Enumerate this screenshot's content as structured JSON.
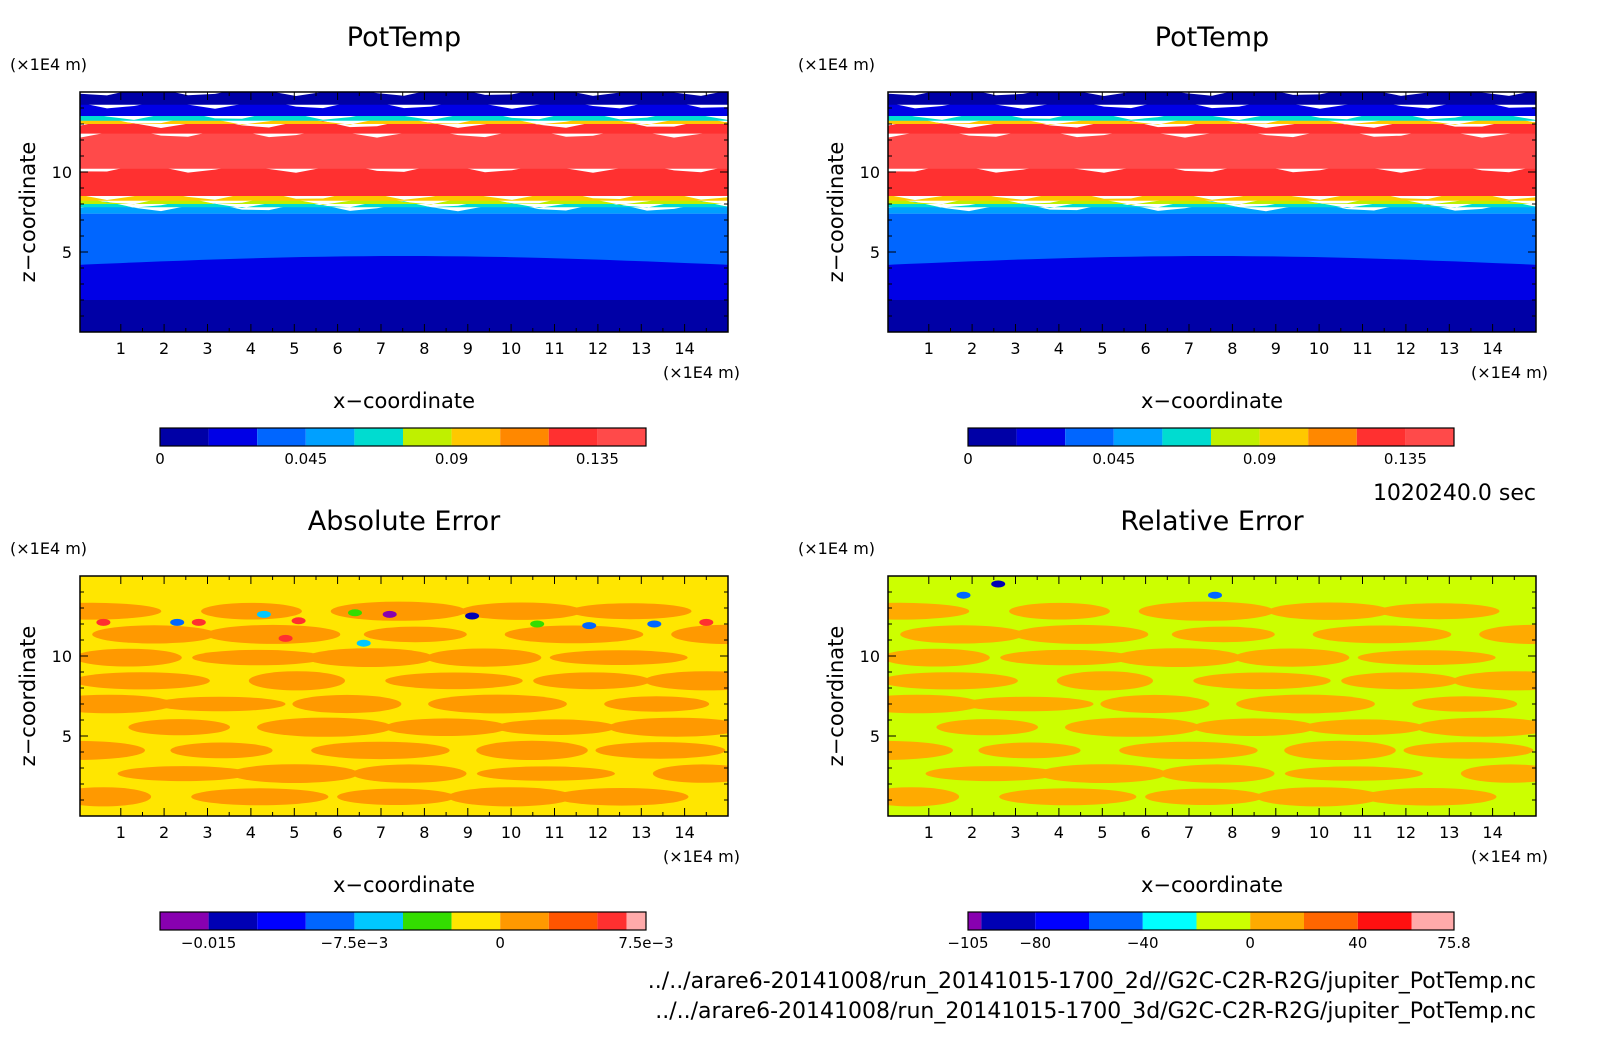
{
  "time_label": "1020240.0 sec",
  "files": [
    "../../arare6-20141008/run_20141015-1700_2d//G2C-C2R-R2G/jupiter_PotTemp.nc",
    "../../arare6-20141008/run_20141015-1700_3d/G2C-C2R-R2G/jupiter_PotTemp.nc"
  ],
  "chart_data": [
    {
      "type": "heatmap",
      "title": "PotTemp",
      "xlabel": "x−coordinate",
      "ylabel": "z−coordinate",
      "x_unit": "(×1E4 m)",
      "y_unit": "(×1E4 m)",
      "xlim": [
        0.06,
        15
      ],
      "ylim": [
        0,
        15
      ],
      "x_ticks": [
        1,
        2,
        3,
        4,
        5,
        6,
        7,
        8,
        9,
        10,
        11,
        12,
        13,
        14
      ],
      "y_ticks": [
        5,
        10
      ],
      "colorbar": {
        "min": 0,
        "max": 0.15,
        "levels": [
          0,
          0.015,
          0.03,
          0.045,
          0.06,
          0.075,
          0.09,
          0.105,
          0.12,
          0.135,
          0.15
        ],
        "colors": [
          "#0000a6",
          "#0000e6",
          "#0066ff",
          "#00a0ff",
          "#00dcd0",
          "#bff000",
          "#ffc800",
          "#ff8800",
          "#ff3030",
          "#ff4a4a",
          "#ffaaaa"
        ],
        "tick_values": [
          0,
          0.045,
          0.09,
          0.135
        ],
        "tick_labels": [
          "0",
          "0.045",
          "0.09",
          "0.135"
        ]
      },
      "bands": [
        {
          "z": [
            0,
            2
          ],
          "value": 0.005
        },
        {
          "z": [
            2,
            4.2
          ],
          "value": 0.02
        },
        {
          "z": [
            4.2,
            7.4
          ],
          "value": 0.035
        },
        {
          "z": [
            7.4,
            7.8
          ],
          "value": 0.05
        },
        {
          "z": [
            7.8,
            8.0
          ],
          "value": 0.065
        },
        {
          "z": [
            8.0,
            8.2
          ],
          "value": 0.08
        },
        {
          "z": [
            8.2,
            8.5
          ],
          "value": 0.095
        },
        {
          "z": [
            8.5,
            10.2
          ],
          "value": 0.125
        },
        {
          "z": [
            10.2,
            12.4
          ],
          "value": 0.145
        },
        {
          "z": [
            12.4,
            13.0
          ],
          "value": 0.128
        },
        {
          "z": [
            13.0,
            13.2
          ],
          "value": 0.095
        },
        {
          "z": [
            13.2,
            13.5
          ],
          "value": 0.065
        },
        {
          "z": [
            13.5,
            14.2
          ],
          "value": 0.02
        },
        {
          "z": [
            14.2,
            15
          ],
          "value": -0.005
        }
      ]
    },
    {
      "type": "heatmap",
      "title": "PotTemp",
      "xlabel": "x−coordinate",
      "ylabel": "z−coordinate",
      "x_unit": "(×1E4 m)",
      "y_unit": "(×1E4 m)",
      "xlim": [
        0.06,
        15
      ],
      "ylim": [
        0,
        15
      ],
      "x_ticks": [
        1,
        2,
        3,
        4,
        5,
        6,
        7,
        8,
        9,
        10,
        11,
        12,
        13,
        14
      ],
      "y_ticks": [
        5,
        10
      ],
      "colorbar": {
        "min": 0,
        "max": 0.15,
        "levels": [
          0,
          0.015,
          0.03,
          0.045,
          0.06,
          0.075,
          0.09,
          0.105,
          0.12,
          0.135,
          0.15
        ],
        "colors": [
          "#0000a6",
          "#0000e6",
          "#0066ff",
          "#00a0ff",
          "#00dcd0",
          "#bff000",
          "#ffc800",
          "#ff8800",
          "#ff3030",
          "#ff4a4a",
          "#ffaaaa"
        ],
        "tick_values": [
          0,
          0.045,
          0.09,
          0.135
        ],
        "tick_labels": [
          "0",
          "0.045",
          "0.09",
          "0.135"
        ]
      },
      "bands": [
        {
          "z": [
            0,
            2
          ],
          "value": 0.005
        },
        {
          "z": [
            2,
            4.2
          ],
          "value": 0.02
        },
        {
          "z": [
            4.2,
            7.4
          ],
          "value": 0.035
        },
        {
          "z": [
            7.4,
            7.8
          ],
          "value": 0.05
        },
        {
          "z": [
            7.8,
            8.0
          ],
          "value": 0.065
        },
        {
          "z": [
            8.0,
            8.2
          ],
          "value": 0.08
        },
        {
          "z": [
            8.2,
            8.5
          ],
          "value": 0.095
        },
        {
          "z": [
            8.5,
            10.2
          ],
          "value": 0.125
        },
        {
          "z": [
            10.2,
            12.4
          ],
          "value": 0.145
        },
        {
          "z": [
            12.4,
            13.0
          ],
          "value": 0.128
        },
        {
          "z": [
            13.0,
            13.2
          ],
          "value": 0.095
        },
        {
          "z": [
            13.2,
            13.5
          ],
          "value": 0.065
        },
        {
          "z": [
            13.5,
            14.2
          ],
          "value": 0.02
        },
        {
          "z": [
            14.2,
            15
          ],
          "value": -0.005
        }
      ]
    },
    {
      "type": "heatmap",
      "title": "Absolute Error",
      "xlabel": "x−coordinate",
      "ylabel": "z−coordinate",
      "x_unit": "(×1E4 m)",
      "y_unit": "(×1E4 m)",
      "xlim": [
        0.06,
        15
      ],
      "ylim": [
        0,
        15
      ],
      "x_ticks": [
        1,
        2,
        3,
        4,
        5,
        6,
        7,
        8,
        9,
        10,
        11,
        12,
        13,
        14
      ],
      "y_ticks": [
        5,
        10
      ],
      "colorbar": {
        "min": -0.0175,
        "max": 0.0075,
        "levels": [
          -0.0175,
          -0.015,
          -0.0125,
          -0.01,
          -0.0075,
          -0.005,
          -0.0025,
          0,
          0.0025,
          0.005,
          0.0065,
          0.0075
        ],
        "colors": [
          "#8800b0",
          "#0000b4",
          "#0000ff",
          "#0066ff",
          "#00c8ff",
          "#33dd00",
          "#ffe600",
          "#ff9900",
          "#ff5500",
          "#ff3030",
          "#ffaaaa"
        ],
        "tick_values": [
          -0.015,
          -0.0075,
          0,
          0.0075
        ],
        "tick_labels": [
          "−0.015",
          "−7.5e−3",
          "0",
          "7.5e−3"
        ]
      },
      "base_value": -0.001,
      "patch_value": 0.001,
      "spots": [
        {
          "x": 0.6,
          "z": 12.1,
          "value": 0.006
        },
        {
          "x": 2.3,
          "z": 12.1,
          "value": -0.009
        },
        {
          "x": 2.8,
          "z": 12.1,
          "value": 0.006
        },
        {
          "x": 5.1,
          "z": 12.2,
          "value": 0.006
        },
        {
          "x": 10.6,
          "z": 12.0,
          "value": -0.004
        },
        {
          "x": 11.8,
          "z": 11.9,
          "value": -0.009
        },
        {
          "x": 13.3,
          "z": 12.0,
          "value": -0.009
        },
        {
          "x": 14.5,
          "z": 12.1,
          "value": 0.006
        },
        {
          "x": 7.2,
          "z": 12.6,
          "value": -0.016
        },
        {
          "x": 9.1,
          "z": 12.5,
          "value": -0.014
        },
        {
          "x": 4.3,
          "z": 12.6,
          "value": -0.006
        },
        {
          "x": 6.4,
          "z": 12.7,
          "value": -0.005
        },
        {
          "x": 6.6,
          "z": 10.8,
          "value": -0.006
        },
        {
          "x": 4.8,
          "z": 11.1,
          "value": 0.006
        }
      ]
    },
    {
      "type": "heatmap",
      "title": "Relative Error",
      "xlabel": "x−coordinate",
      "ylabel": "z−coordinate",
      "x_unit": "(×1E4 m)",
      "y_unit": "(×1E4 m)",
      "xlim": [
        0.06,
        15
      ],
      "ylim": [
        0,
        15
      ],
      "x_ticks": [
        1,
        2,
        3,
        4,
        5,
        6,
        7,
        8,
        9,
        10,
        11,
        12,
        13,
        14
      ],
      "y_ticks": [
        5,
        10
      ],
      "colorbar": {
        "min": -105,
        "max": 75.8,
        "levels": [
          -105,
          -100,
          -80,
          -60,
          -40,
          -20,
          0,
          20,
          40,
          60,
          75.8
        ],
        "colors": [
          "#8800b0",
          "#0000b4",
          "#0000ff",
          "#0066ff",
          "#00ffff",
          "#ccff00",
          "#ffaa00",
          "#ff6600",
          "#ff1010",
          "#ffaaaa"
        ],
        "tick_values": [
          -105,
          -80,
          -40,
          0,
          40,
          75.8
        ],
        "tick_labels": [
          "−105",
          "−80",
          "−40",
          "0",
          "40",
          "75.8"
        ]
      },
      "base_value": -10,
      "patch_value": 10,
      "spots": [
        {
          "x": 2.6,
          "z": 14.5,
          "value": -90
        },
        {
          "x": 1.8,
          "z": 13.8,
          "value": -50
        },
        {
          "x": 7.6,
          "z": 13.8,
          "value": -50
        }
      ]
    }
  ]
}
